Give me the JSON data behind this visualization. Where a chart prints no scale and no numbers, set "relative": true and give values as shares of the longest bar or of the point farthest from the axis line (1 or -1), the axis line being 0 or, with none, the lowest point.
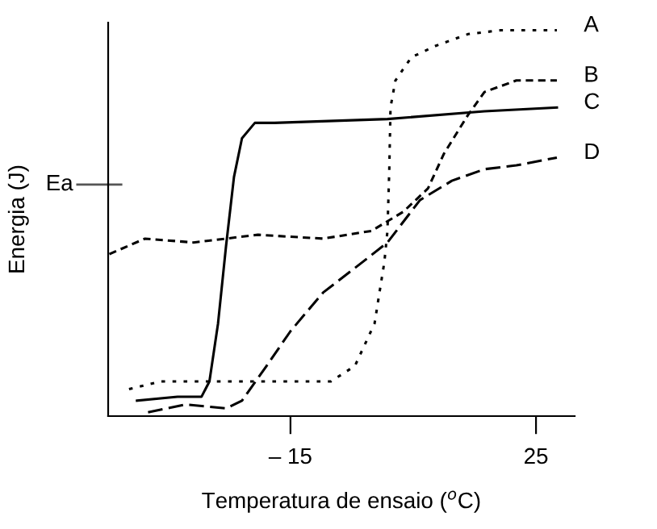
{
  "chart_data": {
    "type": "line",
    "relative": true,
    "xlabel": "Temperatura de ensaio ($^{o}$C)",
    "ylabel": "Energia (J)",
    "xlim": [
      -44.7,
      31.3
    ],
    "xticks": [
      {
        "value": -15,
        "label": "– 15"
      },
      25
    ],
    "grid": false,
    "legend": false,
    "marker": "none",
    "ref_lines": [
      {
        "axis": "y",
        "value": 0.6,
        "label": "Ea"
      }
    ],
    "series": [
      {
        "name": "A",
        "color": "#000000",
        "line_style": "dotted",
        "x": [
          -41.3,
          -36.1,
          -25.5,
          -8.4,
          -4.5,
          -1.3,
          0.3,
          0.8,
          1.1,
          1.3,
          2.1,
          4.7,
          8.7,
          13.9,
          19.2,
          24.5,
          28.4
        ],
        "values": [
          0.07,
          0.09,
          0.09,
          0.09,
          0.13,
          0.24,
          0.4,
          0.48,
          0.64,
          0.8,
          0.87,
          0.93,
          0.96,
          0.99,
          1.0,
          1.0,
          1.0
        ]
      },
      {
        "name": "B",
        "color": "#000000",
        "line_style": "dashed",
        "x": [
          -44.5,
          -38.7,
          -30.8,
          -20.3,
          -9.7,
          -1.8,
          3.4,
          7.4,
          10.0,
          13.9,
          16.6,
          21.8,
          28.4
        ],
        "values": [
          0.42,
          0.46,
          0.45,
          0.47,
          0.46,
          0.48,
          0.53,
          0.59,
          0.68,
          0.78,
          0.84,
          0.87,
          0.87
        ]
      },
      {
        "name": "C",
        "color": "#000000",
        "line_style": "solid",
        "x": [
          -40,
          -33.4,
          -29.5,
          -28.2,
          -26.8,
          -25.5,
          -24.2,
          -22.9,
          -20.8,
          -17.6,
          0.8,
          16.6,
          28.4
        ],
        "values": [
          0.04,
          0.05,
          0.05,
          0.09,
          0.24,
          0.44,
          0.62,
          0.72,
          0.76,
          0.76,
          0.77,
          0.79,
          0.8
        ]
      },
      {
        "name": "D",
        "color": "#000000",
        "line_style": "longdash",
        "x": [
          -38.2,
          -32.1,
          -25.5,
          -22.9,
          -18.9,
          -15,
          -9.7,
          -3.2,
          0.8,
          6.1,
          11.3,
          16.6,
          21.8,
          28.4
        ],
        "values": [
          0.01,
          0.03,
          0.02,
          0.04,
          0.13,
          0.22,
          0.32,
          0.4,
          0.45,
          0.56,
          0.61,
          0.64,
          0.65,
          0.67
        ]
      }
    ]
  }
}
